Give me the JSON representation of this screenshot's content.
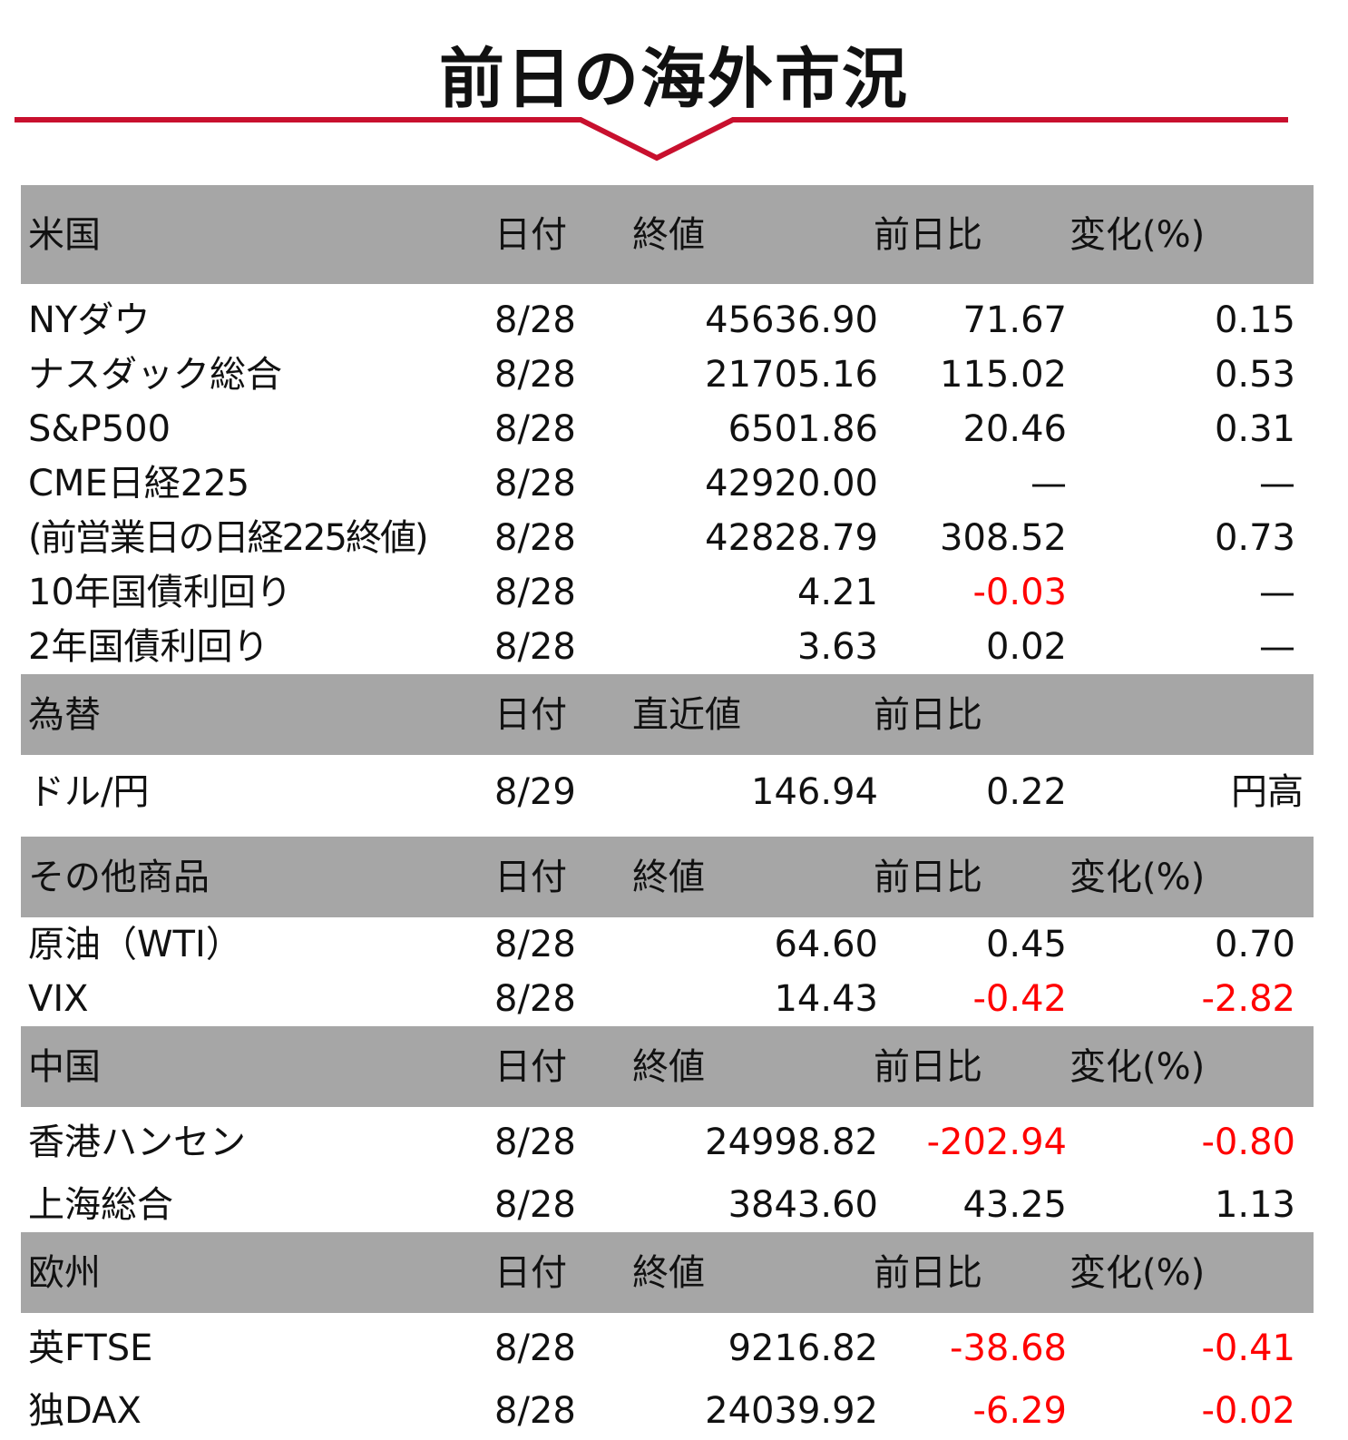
{
  "title": "前日の海外市況",
  "colors": {
    "rule": "#c8102e",
    "header_bg": "#a6a6a6",
    "negative": "#ff0000"
  },
  "sections": {
    "us": {
      "header": [
        "米国",
        "日付",
        "終値",
        "前日比",
        "変化(%)"
      ],
      "rows": [
        [
          "NYダウ",
          "8/28",
          "45636.90",
          "71.67",
          "0.15"
        ],
        [
          "ナスダック総合",
          "8/28",
          "21705.16",
          "115.02",
          "0.53"
        ],
        [
          "S&P500",
          "8/28",
          "6501.86",
          "20.46",
          "0.31"
        ],
        [
          "CME日経225",
          "8/28",
          "42920.00",
          "—",
          "—"
        ],
        [
          "(前営業日の日経225終値)",
          "8/28",
          "42828.79",
          "308.52",
          "0.73"
        ],
        [
          "10年国債利回り",
          "8/28",
          "4.21",
          "-0.03",
          "—"
        ],
        [
          "2年国債利回り",
          "8/28",
          "3.63",
          "0.02",
          "—"
        ]
      ]
    },
    "fx": {
      "header": [
        "為替",
        "日付",
        "直近値",
        "前日比"
      ],
      "rows": [
        [
          "ドル/円",
          "8/29",
          "146.94",
          "0.22",
          "円高"
        ]
      ]
    },
    "commodities": {
      "header": [
        "その他商品",
        "日付",
        "終値",
        "前日比",
        "変化(%)"
      ],
      "rows": [
        [
          "原油（WTI）",
          "8/28",
          "64.60",
          "0.45",
          "0.70"
        ],
        [
          "VIX",
          "8/28",
          "14.43",
          "-0.42",
          "-2.82"
        ]
      ]
    },
    "china": {
      "header": [
        "中国",
        "日付",
        "終値",
        "前日比",
        "変化(%)"
      ],
      "rows": [
        [
          "香港ハンセン",
          "8/28",
          "24998.82",
          "-202.94",
          "-0.80"
        ],
        [
          "上海総合",
          "8/28",
          "3843.60",
          "43.25",
          "1.13"
        ]
      ]
    },
    "europe": {
      "header": [
        "欧州",
        "日付",
        "終値",
        "前日比",
        "変化(%)"
      ],
      "rows": [
        [
          "英FTSE",
          "8/28",
          "9216.82",
          "-38.68",
          "-0.41"
        ],
        [
          "独DAX",
          "8/28",
          "24039.92",
          "-6.29",
          "-0.02"
        ]
      ]
    }
  }
}
